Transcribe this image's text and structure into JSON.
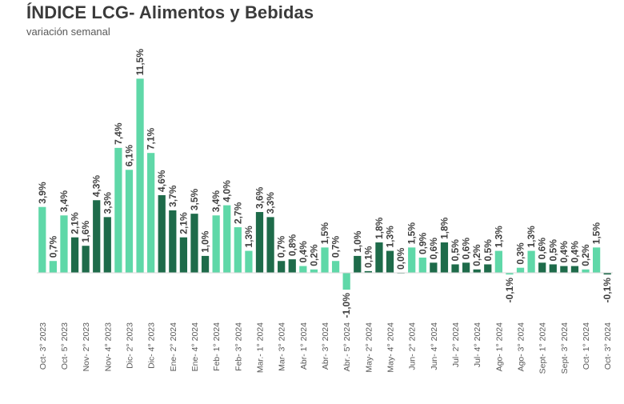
{
  "chart_data": {
    "type": "bar",
    "title": "ÍNDICE LCG- Alimentos y Bebidas",
    "subtitle": "variación semanal",
    "xlabel": "",
    "ylabel": "",
    "ylim": [
      -1.5,
      12
    ],
    "colors": {
      "light": "#5fd8a8",
      "dark": "#1e6b4a"
    },
    "values": [
      3.9,
      0.7,
      3.4,
      2.1,
      1.6,
      4.3,
      3.3,
      7.4,
      6.1,
      11.5,
      7.1,
      4.6,
      3.7,
      2.1,
      3.5,
      1.0,
      3.4,
      4.0,
      2.7,
      1.3,
      3.6,
      3.3,
      0.7,
      0.8,
      0.4,
      0.2,
      1.5,
      0.7,
      -1.0,
      1.0,
      0.1,
      1.8,
      1.3,
      0.0,
      1.5,
      0.9,
      0.6,
      1.8,
      0.5,
      0.6,
      0.2,
      0.5,
      1.3,
      -0.1,
      0.3,
      1.3,
      0.6,
      0.5,
      0.4,
      0.4,
      0.2,
      1.5,
      -0.1
    ],
    "value_labels": [
      "3,9%",
      "0,7%",
      "3,4%",
      "2,1%",
      "1,6%",
      "4,3%",
      "3,3%",
      "7,4%",
      "6,1%",
      "11,5%",
      "7,1%",
      "4,6%",
      "3,7%",
      "2,1%",
      "3,5%",
      "1,0%",
      "3,4%",
      "4,0%",
      "2,7%",
      "1,3%",
      "3,6%",
      "3,3%",
      "0,7%",
      "0,8%",
      "0,4%",
      "0,2%",
      "1,5%",
      "0,7%",
      "-1,0%",
      "1,0%",
      "0,1%",
      "1,8%",
      "1,3%",
      "0,0%",
      "1,5%",
      "0,9%",
      "0,6%",
      "1,8%",
      "0,5%",
      "0,6%",
      "0,2%",
      "0,5%",
      "1,3%",
      "-0,1%",
      "0,3%",
      "1,3%",
      "0,6%",
      "0,5%",
      "0,4%",
      "0,4%",
      "0,2%",
      "1,5%",
      "-0,1%"
    ],
    "bar_colors": [
      "light",
      "light",
      "light",
      "dark",
      "dark",
      "dark",
      "dark",
      "light",
      "light",
      "light",
      "light",
      "dark",
      "dark",
      "dark",
      "dark",
      "dark",
      "light",
      "light",
      "light",
      "light",
      "dark",
      "dark",
      "dark",
      "dark",
      "light",
      "light",
      "light",
      "light",
      "light",
      "dark",
      "dark",
      "dark",
      "dark",
      "dark",
      "light",
      "light",
      "dark",
      "dark",
      "dark",
      "dark",
      "dark",
      "dark",
      "light",
      "light",
      "light",
      "light",
      "dark",
      "dark",
      "dark",
      "dark",
      "light",
      "light",
      "dark"
    ],
    "tick_labels": [
      "Oct- 3° 2023",
      "Oct- 5° 2023",
      "Nov- 2° 2023",
      "Nov- 4° 2023",
      "Dic- 2° 2023",
      "Dic- 4° 2023",
      "Ene- 2° 2024",
      "Ene- 4° 2024",
      "Feb- 1° 2024",
      "Feb- 3° 2024",
      "Mar.- 1° 2024",
      "Mar- 3° 2024",
      "Abr- 1° 2024",
      "Abr- 3° 2024",
      "Abr.- 5° 2024",
      "May- 2° 2024",
      "May- 4° 2024",
      "Jun- 2° 2024",
      "Jun- 4° 2024",
      "Jul- 2° 2024",
      "Jul- 4° 2024",
      "Ago- 1° 2024",
      "Ago- 3° 2024",
      "Sept- 1° 2024",
      "Sept- 3° 2024",
      "Oct- 1° 2024",
      "Oct- 3° 2024"
    ],
    "grid": false,
    "legend": "none"
  }
}
